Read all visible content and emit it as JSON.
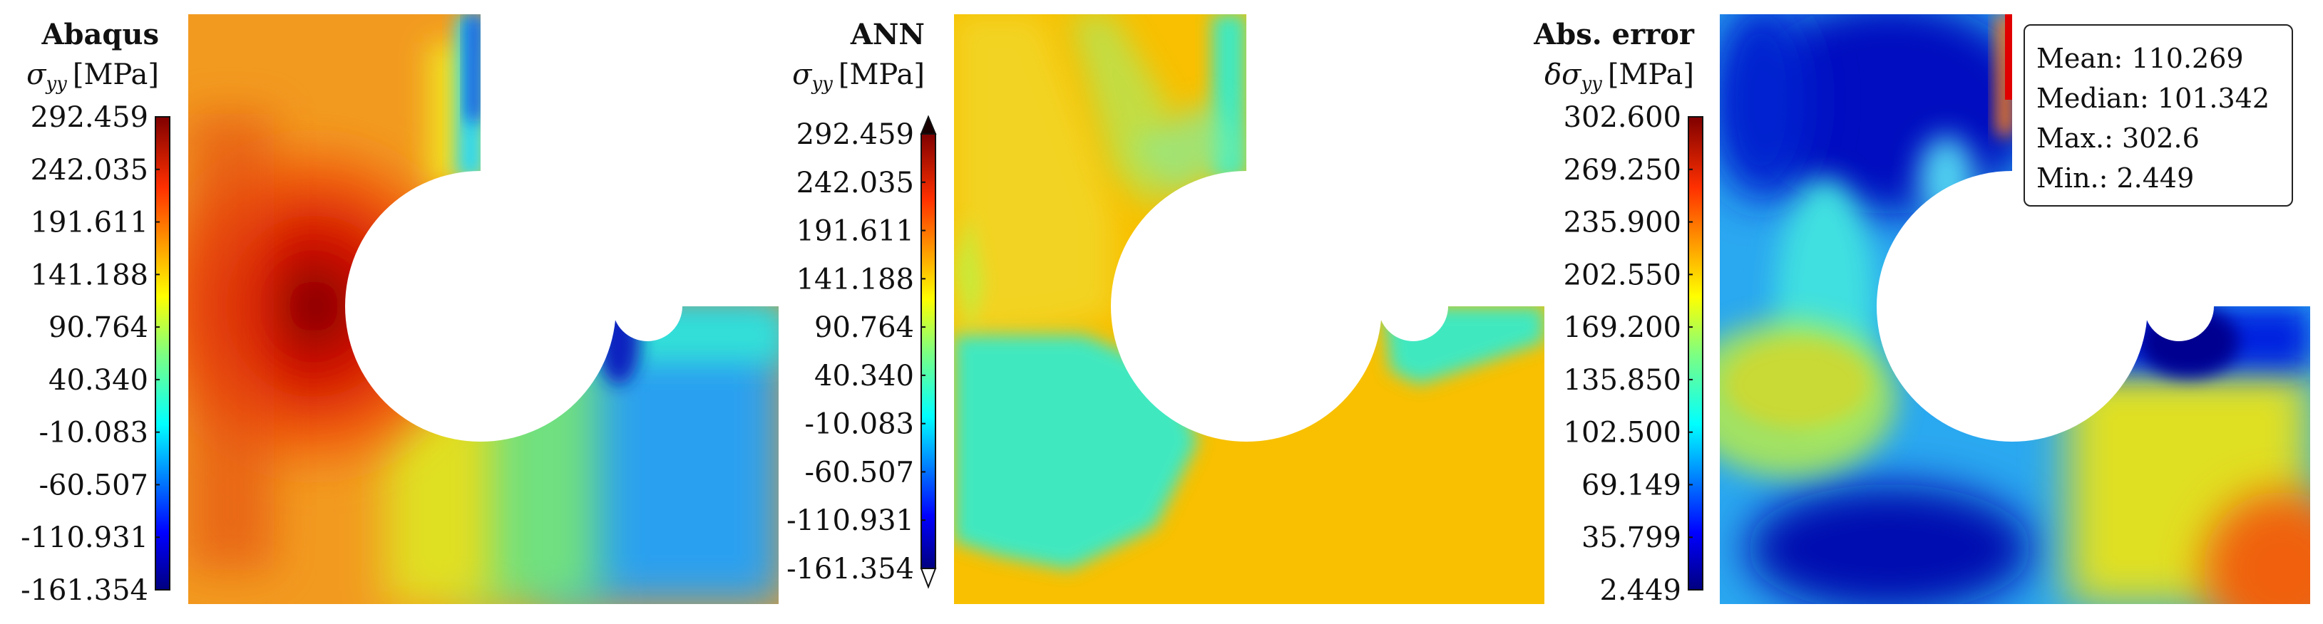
{
  "panels": [
    {
      "title": "Abaqus",
      "quantity": "σ",
      "quantity_sub": "yy",
      "unit": "[MPa]",
      "colorbar_ticks": [
        "292.459",
        "242.035",
        "191.611",
        "141.188",
        "90.764",
        "40.340",
        "-10.083",
        "-60.507",
        "-110.931",
        "-161.354"
      ]
    },
    {
      "title": "ANN",
      "quantity": "σ",
      "quantity_sub": "yy",
      "unit": "[MPa]",
      "colorbar_ticks": [
        "292.459",
        "242.035",
        "191.611",
        "141.188",
        "90.764",
        "40.340",
        "-10.083",
        "-60.507",
        "-110.931",
        "-161.354"
      ]
    },
    {
      "title": "Abs. error",
      "quantity": "δσ",
      "quantity_sub": "yy",
      "unit": "[MPa]",
      "colorbar_ticks": [
        "302.600",
        "269.250",
        "235.900",
        "202.550",
        "169.200",
        "135.850",
        "102.500",
        "69.149",
        "35.799",
        "2.449"
      ]
    }
  ],
  "stats": {
    "mean": "Mean: 110.269",
    "median": "Median: 101.342",
    "max": "Max.: 302.6",
    "min": "Min.: 2.449"
  },
  "colormap": [
    "#00007f",
    "#0000ff",
    "#007fff",
    "#00ffff",
    "#7fff7f",
    "#ffff00",
    "#ff7f00",
    "#ff0000",
    "#7f0000"
  ]
}
